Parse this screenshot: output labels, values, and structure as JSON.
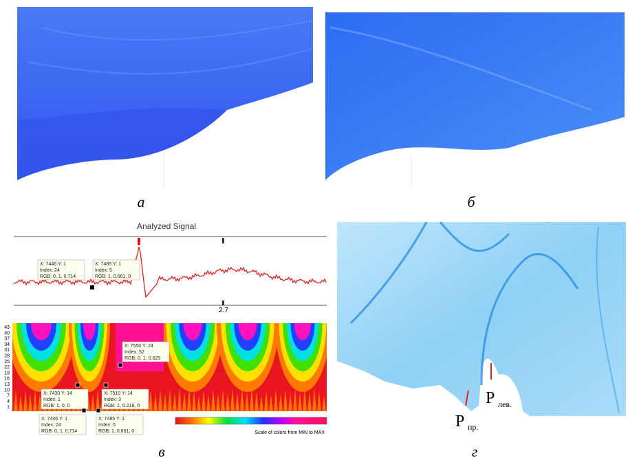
{
  "panels": [
    {
      "label": "а"
    },
    {
      "label": "б"
    },
    {
      "label": "в",
      "title": "Analyzed Signal",
      "marker_label": "2.7",
      "y_labels": [
        "43",
        "40",
        "37",
        "34",
        "31",
        "28",
        "25",
        "22",
        "19",
        "16",
        "13",
        "10",
        "7",
        "4",
        "1"
      ],
      "datatips": [
        [
          "X: 7446 Y: 1",
          "Index: 24",
          "RGB: 0, 1, 0.714"
        ],
        [
          "X: 7485 Y: 1",
          "Index: 5",
          "RGB: 1, 0.661, 0"
        ],
        [
          "X: 7550 Y: 24",
          "Index: 52",
          "RGB: 0, 1, 0.625"
        ],
        [
          "X: 7430 Y: 14",
          "Index: 1",
          "RGB: 1, 0, 0"
        ],
        [
          "X: 7510 Y: 14",
          "Index: 3",
          "RGB: 1, 0.218, 0"
        ],
        [
          "X: 7446 Y: 1",
          "Index: 24",
          "RGB: 0, 1, 0.714"
        ],
        [
          "X: 7485 Y: 1",
          "Index: 5",
          "RGB: 1, 0.661, 0"
        ]
      ],
      "colorbar_caption": "Scale of colors from MIN to MAX"
    },
    {
      "label": "г",
      "markers": [
        {
          "symbol": "P",
          "subscript": "пр."
        },
        {
          "symbol": "P",
          "subscript": "лев."
        }
      ]
    }
  ]
}
